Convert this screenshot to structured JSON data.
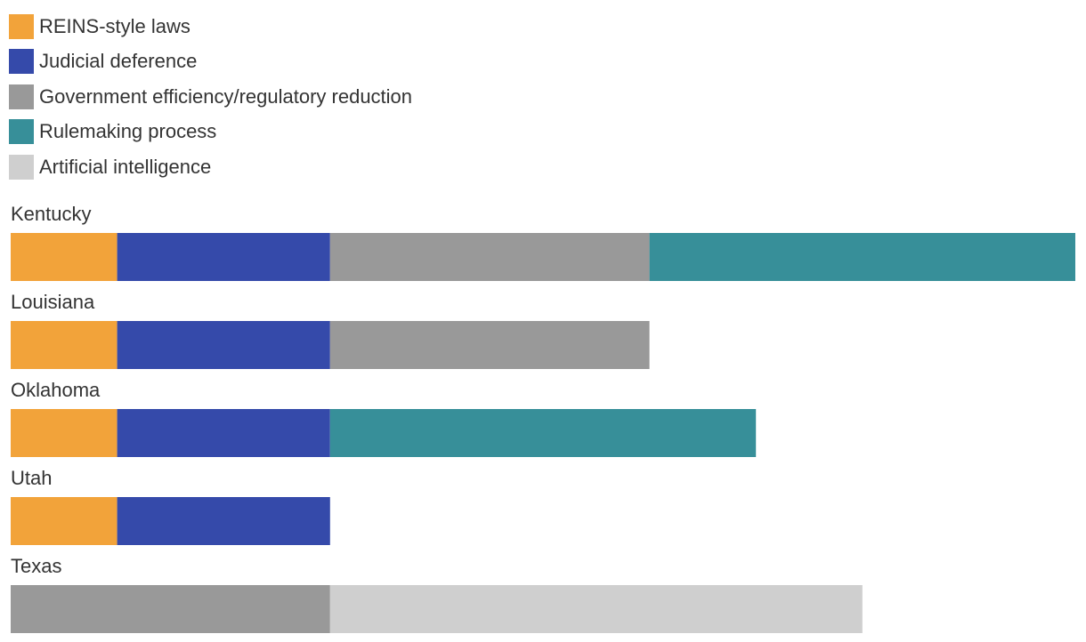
{
  "chart_data": {
    "type": "bar",
    "orientation": "horizontal",
    "stacked": true,
    "legend_position": "top-left",
    "grid": false,
    "categories": [
      "Kentucky",
      "Louisiana",
      "Oklahoma",
      "Utah",
      "Texas"
    ],
    "series": [
      {
        "name": "REINS-style laws",
        "color": "#F2A33A",
        "values": [
          1,
          1,
          1,
          1,
          0
        ]
      },
      {
        "name": "Judicial deference",
        "color": "#354AAA",
        "values": [
          2,
          2,
          2,
          2,
          0
        ]
      },
      {
        "name": "Government efficiency/regulatory reduction",
        "color": "#999999",
        "values": [
          3,
          3,
          0,
          0,
          3
        ]
      },
      {
        "name": "Rulemaking process",
        "color": "#378F99",
        "values": [
          4,
          0,
          4,
          0,
          0
        ]
      },
      {
        "name": "Artificial intelligence",
        "color": "#CFCFCF",
        "values": [
          0,
          0,
          0,
          0,
          5
        ]
      }
    ],
    "xlim": [
      0,
      10
    ]
  }
}
